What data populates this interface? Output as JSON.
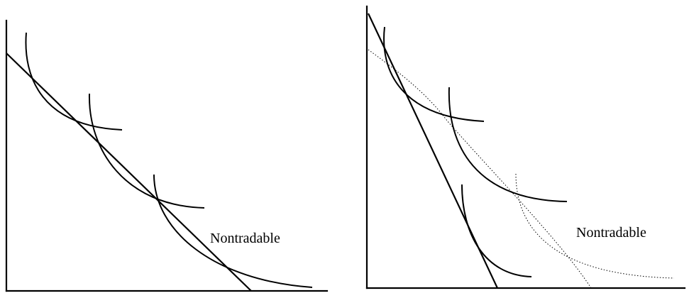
{
  "left_panel": {
    "label": "Nontradable"
  },
  "right_panel": {
    "label": "Nontradable"
  },
  "colors": {
    "ink": "#000000",
    "background": "#ffffff"
  }
}
